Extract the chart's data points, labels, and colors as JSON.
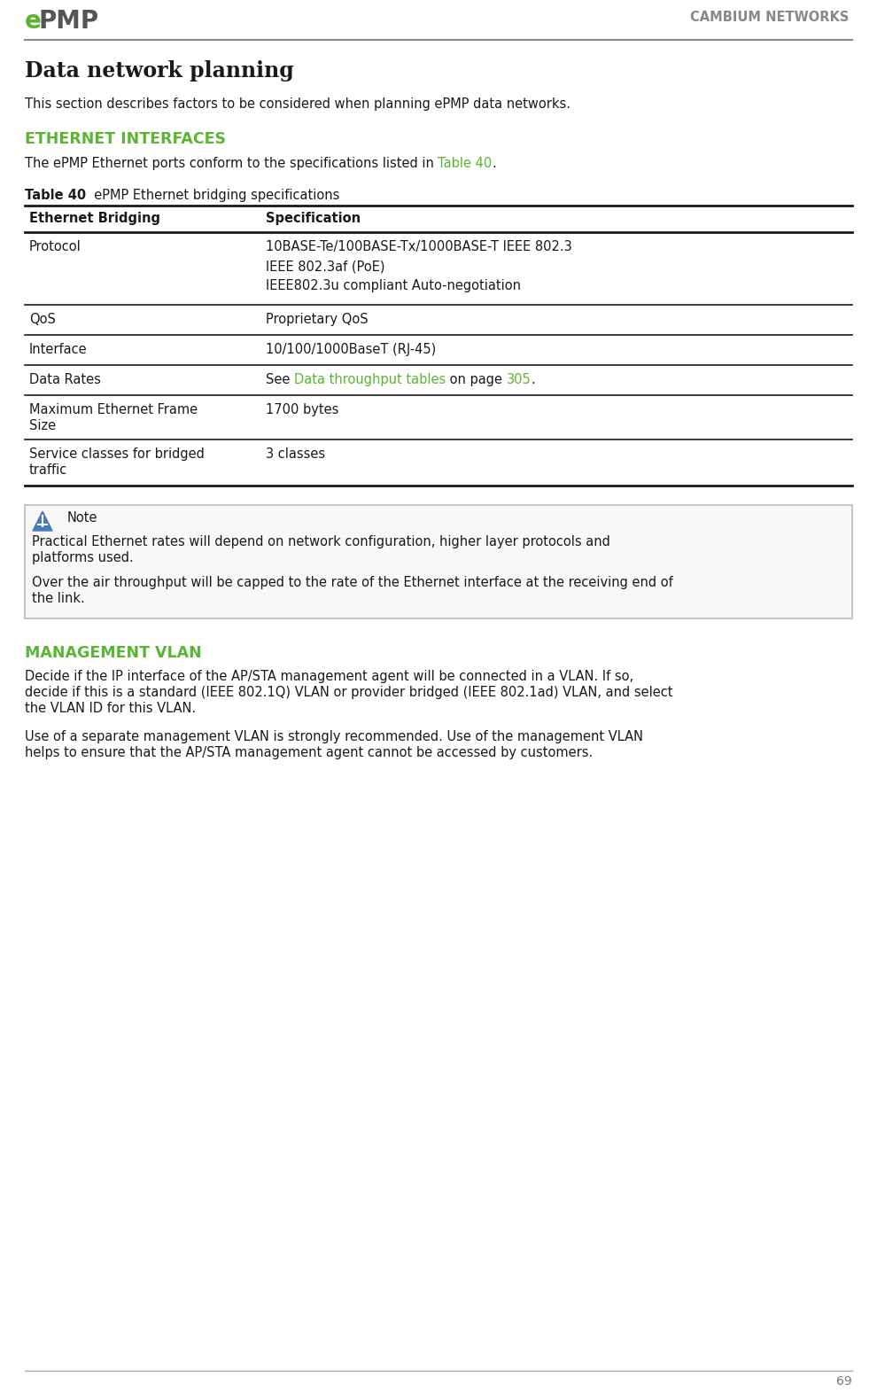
{
  "bg_color": "#ffffff",
  "header_line_color": "#808080",
  "bright_green": "#5ab532",
  "dark_text": "#1a1a1a",
  "gray_text": "#777777",
  "page_num": "69",
  "title": "Data network planning",
  "intro_text": "This section describes factors to be considered when planning ePMP data networks.",
  "section1_heading": "ETHERNET INTERFACES",
  "section1_intro_parts": [
    {
      "text": "The ePMP Ethernet ports conform to the specifications listed in ",
      "green": false
    },
    {
      "text": "Table 40",
      "green": true
    },
    {
      "text": ".",
      "green": false
    }
  ],
  "table_caption_bold": "Table 40",
  "table_caption_rest": "  ePMP Ethernet bridging specifications",
  "table_col1_header": "Ethernet Bridging",
  "table_col2_header": "Specification",
  "table_rows": [
    {
      "col1_lines": [
        "Protocol"
      ],
      "col2_parts": [
        [
          {
            "text": "10BASE-Te/100BASE-Tx/1000BASE-T IEEE 802.3",
            "green": false
          }
        ],
        [
          {
            "text": "IEEE 802.3af (PoE)",
            "green": false
          }
        ],
        [
          {
            "text": "IEEE802.3u compliant Auto-negotiation",
            "green": false
          }
        ]
      ]
    },
    {
      "col1_lines": [
        "QoS"
      ],
      "col2_parts": [
        [
          {
            "text": "Proprietary QoS",
            "green": false
          }
        ]
      ]
    },
    {
      "col1_lines": [
        "Interface"
      ],
      "col2_parts": [
        [
          {
            "text": "10/100/1000BaseT (RJ-45)",
            "green": false
          }
        ]
      ]
    },
    {
      "col1_lines": [
        "Data Rates"
      ],
      "col2_parts": [
        [
          {
            "text": "See ",
            "green": false
          },
          {
            "text": "Data throughput tables",
            "green": true
          },
          {
            "text": " on page ",
            "green": false
          },
          {
            "text": "305",
            "green": true
          },
          {
            "text": ".",
            "green": false
          }
        ]
      ]
    },
    {
      "col1_lines": [
        "Maximum Ethernet Frame",
        "Size"
      ],
      "col2_parts": [
        [
          {
            "text": "1700 bytes",
            "green": false
          }
        ]
      ]
    },
    {
      "col1_lines": [
        "Service classes for bridged",
        "traffic"
      ],
      "col2_parts": [
        [
          {
            "text": "3 classes",
            "green": false
          }
        ]
      ]
    }
  ],
  "note_title": "Note",
  "note_para1_lines": [
    "Practical Ethernet rates will depend on network configuration, higher layer protocols and",
    "platforms used."
  ],
  "note_para2_lines": [
    "Over the air throughput will be capped to the rate of the Ethernet interface at the receiving end of",
    "the link."
  ],
  "section2_heading": "MANAGEMENT VLAN",
  "section2_para1_lines": [
    "Decide if the IP interface of the AP/STA management agent will be connected in a VLAN. If so,",
    "decide if this is a standard (IEEE 802.1Q) VLAN or provider bridged (IEEE 802.1ad) VLAN, and select",
    "the VLAN ID for this VLAN."
  ],
  "section2_para2_lines": [
    "Use of a separate management VLAN is strongly recommended. Use of the management VLAN",
    "helps to ensure that the AP/STA management agent cannot be accessed by customers."
  ]
}
